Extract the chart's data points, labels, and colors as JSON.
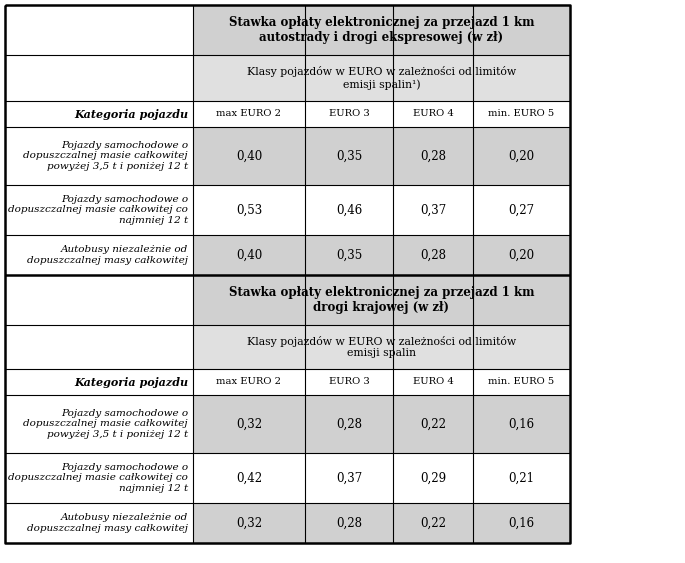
{
  "title1": "Stawka opłaty elektronicznej za przejazd 1 km\nautostrady i drogi ekspresowej (w zł)",
  "subtitle1": "Klasy pojazdów w EURO w zależności od limitów\nemisji spalin¹)",
  "title2": "Stawka opłaty elektronicznej za przejazd 1 km\ndrogi krajowej (w zł)",
  "subtitle2": "Klasy pojazdów w EURO w zależności od limitów\nemisji spalin",
  "col_header": "Kategoria pojazdu",
  "euro_headers": [
    "max EURO 2",
    "EURO 3",
    "EURO 4",
    "min. EURO 5"
  ],
  "row_labels": [
    "Pojazdy samochodowe o\ndopuszczalnej masie całkowitej\npowyżej 3,5 t i poniżej 12 t",
    "Pojazdy samochodowe o\ndopuszczalnej masie całkowitej co\nnajmniej 12 t",
    "Autobusy niezależnie od\ndopuszczalnej masy całkowitej"
  ],
  "data_section1": [
    [
      "0,40",
      "0,35",
      "0,28",
      "0,20"
    ],
    [
      "0,53",
      "0,46",
      "0,37",
      "0,27"
    ],
    [
      "0,40",
      "0,35",
      "0,28",
      "0,20"
    ]
  ],
  "data_section2": [
    [
      "0,32",
      "0,28",
      "0,22",
      "0,16"
    ],
    [
      "0,42",
      "0,37",
      "0,29",
      "0,21"
    ],
    [
      "0,32",
      "0,28",
      "0,22",
      "0,16"
    ]
  ],
  "bg_header": "#d0d0d0",
  "bg_subheader": "#e0e0e0",
  "bg_data_shaded": "#d0d0d0",
  "bg_white": "#ffffff",
  "border_color": "#000000"
}
